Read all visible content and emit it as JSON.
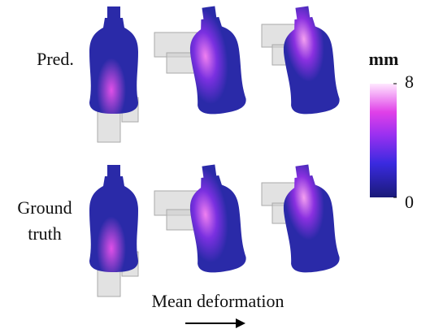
{
  "row_labels": {
    "pred": "Pred.",
    "ground_truth": [
      "Ground",
      "truth"
    ]
  },
  "colorbar": {
    "unit": "mm",
    "lim": [
      0,
      8
    ],
    "ticks": [
      0,
      8
    ]
  },
  "caption": "Mean deformation"
}
